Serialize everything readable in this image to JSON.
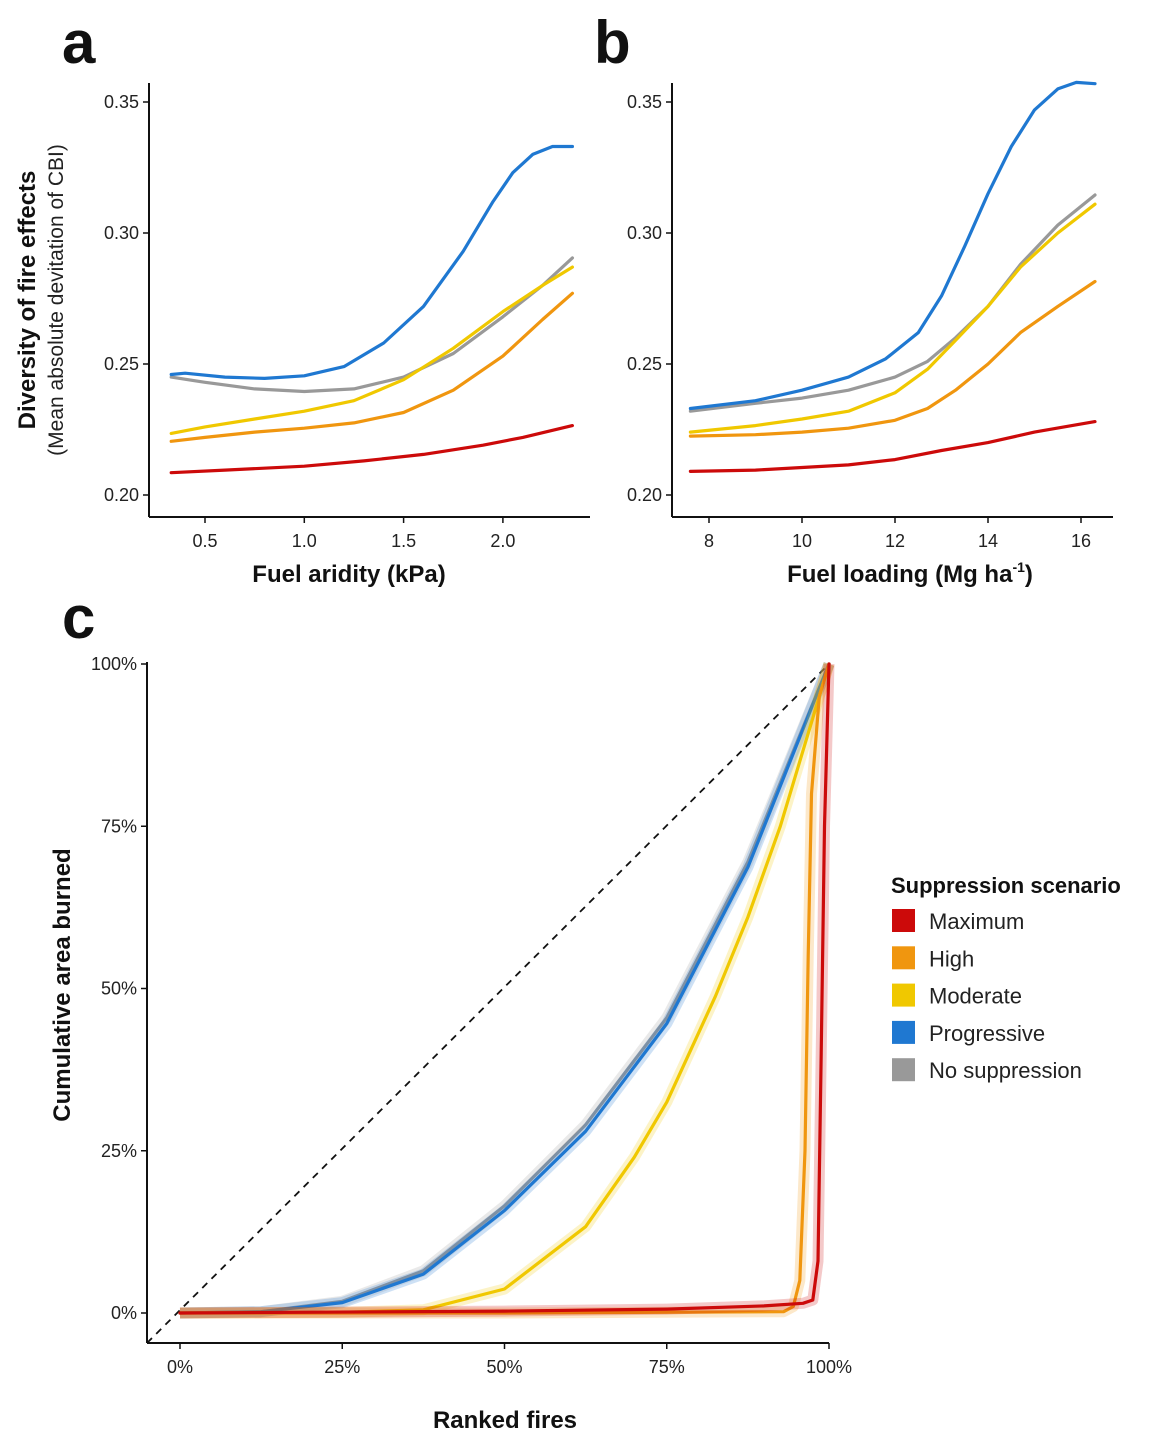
{
  "series_meta": [
    {
      "key": "maximum",
      "name": "Maximum",
      "color": "#cc0a0a"
    },
    {
      "key": "high",
      "name": "High",
      "color": "#f0960f"
    },
    {
      "key": "moderate",
      "name": "Moderate",
      "color": "#f0c800"
    },
    {
      "key": "progressive",
      "name": "Progressive",
      "color": "#1f78d1"
    },
    {
      "key": "none",
      "name": "No suppression",
      "color": "#999999"
    }
  ],
  "chart_data": [
    {
      "panel_label": "a",
      "type": "line",
      "xlabel": "Fuel aridity (kPa)",
      "ylabel": "Diversity of fire effects",
      "ylabel_sub": "(Mean absolute devitation of CBI)",
      "xticks": [
        "0.5",
        "1.0",
        "1.5",
        "2.0"
      ],
      "xtick_values": [
        0.5,
        1.0,
        1.5,
        2.0
      ],
      "yticks": [
        "0.20",
        "0.25",
        "0.30",
        "0.35"
      ],
      "ytick_values": [
        0.2,
        0.25,
        0.3,
        0.35
      ],
      "series": [
        {
          "name": "No suppression",
          "x": [
            0.33,
            0.5,
            0.75,
            1.0,
            1.25,
            1.5,
            1.75,
            2.0,
            2.2,
            2.35
          ],
          "y": [
            0.245,
            0.243,
            0.2405,
            0.2395,
            0.2405,
            0.245,
            0.254,
            0.268,
            0.28,
            0.2905
          ]
        },
        {
          "name": "Maximum",
          "x": [
            0.33,
            0.6,
            1.0,
            1.3,
            1.6,
            1.9,
            2.1,
            2.35
          ],
          "y": [
            0.2085,
            0.2095,
            0.211,
            0.213,
            0.2155,
            0.219,
            0.222,
            0.2265
          ]
        },
        {
          "name": "High",
          "x": [
            0.33,
            0.5,
            0.75,
            1.0,
            1.25,
            1.5,
            1.75,
            2.0,
            2.2,
            2.35
          ],
          "y": [
            0.2205,
            0.222,
            0.224,
            0.2255,
            0.2275,
            0.2315,
            0.24,
            0.253,
            0.267,
            0.277
          ]
        },
        {
          "name": "Moderate",
          "x": [
            0.33,
            0.5,
            0.75,
            1.0,
            1.25,
            1.5,
            1.75,
            2.0,
            2.2,
            2.35
          ],
          "y": [
            0.2235,
            0.226,
            0.229,
            0.232,
            0.236,
            0.244,
            0.256,
            0.27,
            0.28,
            0.287
          ]
        },
        {
          "name": "Progressive",
          "x": [
            0.33,
            0.4,
            0.6,
            0.8,
            1.0,
            1.2,
            1.4,
            1.6,
            1.8,
            1.95,
            2.05,
            2.15,
            2.25,
            2.35
          ],
          "y": [
            0.246,
            0.2465,
            0.245,
            0.2445,
            0.2455,
            0.249,
            0.258,
            0.272,
            0.293,
            0.312,
            0.323,
            0.33,
            0.333,
            0.333
          ]
        }
      ]
    },
    {
      "panel_label": "b",
      "type": "line",
      "xlabel": "Fuel loading (Mg ha",
      "xlabel_sup": "-1",
      "xlabel_end": ")",
      "xticks": [
        "8",
        "10",
        "12",
        "14",
        "16"
      ],
      "xtick_values": [
        8,
        10,
        12,
        14,
        16
      ],
      "yticks": [
        "0.20",
        "0.25",
        "0.30",
        "0.35"
      ],
      "ytick_values": [
        0.2,
        0.25,
        0.3,
        0.35
      ],
      "series": [
        {
          "name": "No suppression",
          "x": [
            7.6,
            9,
            10,
            11,
            12,
            12.7,
            13.3,
            14,
            14.7,
            15.5,
            16.3
          ],
          "y": [
            0.232,
            0.235,
            0.237,
            0.24,
            0.245,
            0.251,
            0.26,
            0.272,
            0.288,
            0.303,
            0.3145
          ]
        },
        {
          "name": "Maximum",
          "x": [
            7.6,
            9,
            10,
            11,
            12,
            13,
            14,
            15,
            16.3
          ],
          "y": [
            0.209,
            0.2095,
            0.2105,
            0.2115,
            0.2135,
            0.217,
            0.22,
            0.224,
            0.228
          ]
        },
        {
          "name": "High",
          "x": [
            7.6,
            9,
            10,
            11,
            12,
            12.7,
            13.3,
            14,
            14.7,
            15.5,
            16.3
          ],
          "y": [
            0.2225,
            0.223,
            0.224,
            0.2255,
            0.2285,
            0.233,
            0.24,
            0.25,
            0.262,
            0.272,
            0.2815
          ]
        },
        {
          "name": "Moderate",
          "x": [
            7.6,
            9,
            10,
            11,
            12,
            12.7,
            13.3,
            14,
            14.7,
            15.5,
            16.3
          ],
          "y": [
            0.224,
            0.2265,
            0.229,
            0.232,
            0.239,
            0.248,
            0.259,
            0.272,
            0.287,
            0.3,
            0.311
          ]
        },
        {
          "name": "Progressive",
          "x": [
            7.6,
            9,
            10,
            11,
            11.8,
            12.5,
            13,
            13.5,
            14,
            14.5,
            15,
            15.5,
            15.9,
            16.3
          ],
          "y": [
            0.233,
            0.236,
            0.24,
            0.245,
            0.252,
            0.262,
            0.276,
            0.295,
            0.315,
            0.333,
            0.347,
            0.355,
            0.3575,
            0.357
          ]
        }
      ]
    },
    {
      "panel_label": "c",
      "type": "line",
      "xlabel": "Ranked fires",
      "ylabel": "Cumulative area burned",
      "xticks": [
        "0%",
        "25%",
        "50%",
        "75%",
        "100%"
      ],
      "xtick_values": [
        0,
        25,
        50,
        75,
        100
      ],
      "yticks": [
        "0%",
        "25%",
        "50%",
        "75%",
        "100%"
      ],
      "ytick_values": [
        0,
        25,
        50,
        75,
        100
      ],
      "reference_line": "1:1 dashed",
      "legend_title": "Suppression scenario",
      "legend_placement": "right",
      "series": [
        {
          "name": "No suppression",
          "x": [
            0,
            12.5,
            25,
            37.5,
            50,
            62.5,
            75,
            87.5,
            100
          ],
          "y": [
            0,
            0.2,
            1.8,
            6.5,
            16.5,
            29,
            45.5,
            69.5,
            100
          ]
        },
        {
          "name": "Progressive",
          "x": [
            0,
            12.5,
            25,
            37.5,
            50,
            62.5,
            75,
            87.5,
            100
          ],
          "y": [
            0,
            0.2,
            1.6,
            6,
            15.8,
            28,
            44.6,
            68.7,
            100
          ]
        },
        {
          "name": "Moderate",
          "x": [
            0,
            25,
            37.5,
            50,
            62.5,
            70,
            75,
            82.5,
            87.5,
            92.5,
            100
          ],
          "y": [
            0,
            0.1,
            0.5,
            3.7,
            13.3,
            24,
            32.5,
            48.8,
            61,
            75,
            100
          ]
        },
        {
          "name": "High",
          "x": [
            0,
            50,
            93,
            94.5,
            95.5,
            96.3,
            96.8,
            97.3,
            98.5,
            100
          ],
          "y": [
            0,
            0,
            0.2,
            1,
            5,
            25,
            55,
            80,
            95,
            100
          ]
        },
        {
          "name": "Maximum",
          "x": [
            0,
            50,
            75,
            90,
            96,
            97.5,
            98.3,
            98.8,
            99.3,
            100
          ],
          "y": [
            0,
            0.3,
            0.6,
            1.1,
            1.5,
            2,
            8,
            40,
            75,
            100
          ]
        }
      ]
    }
  ]
}
